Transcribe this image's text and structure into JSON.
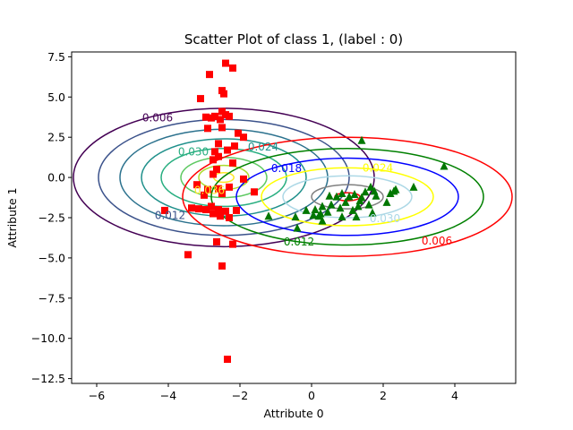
{
  "chart_data": {
    "type": "scatter",
    "title": "Scatter Plot of class 1, (label : 0)",
    "xlabel": "Attribute 0",
    "ylabel": "Attribute 1",
    "xlim": [
      -6.7,
      5.7
    ],
    "ylim": [
      -12.8,
      7.8
    ],
    "x_ticks": [
      -6,
      -4,
      -2,
      0,
      2,
      4
    ],
    "x_tick_labels": [
      "−6",
      "−4",
      "−2",
      "0",
      "2",
      "4"
    ],
    "y_ticks": [
      -12.5,
      -10.0,
      -7.5,
      -5.0,
      -2.5,
      0.0,
      2.5,
      5.0,
      7.5
    ],
    "y_tick_labels": [
      "−12.5",
      "−10.0",
      "−7.5",
      "−5.0",
      "−2.5",
      "0.0",
      "2.5",
      "5.0",
      "7.5"
    ],
    "grid": false,
    "series": [
      {
        "marker": "square",
        "color": "#ff0000",
        "points": [
          [
            -2.4,
            7.1
          ],
          [
            -2.2,
            6.8
          ],
          [
            -2.85,
            6.4
          ],
          [
            -2.5,
            5.4
          ],
          [
            -2.45,
            5.2
          ],
          [
            -3.1,
            4.9
          ],
          [
            -2.5,
            4.1
          ],
          [
            -2.4,
            3.9
          ],
          [
            -2.7,
            3.8
          ],
          [
            -2.95,
            3.75
          ],
          [
            -2.8,
            3.7
          ],
          [
            -2.55,
            3.6
          ],
          [
            -2.3,
            3.8
          ],
          [
            -2.5,
            3.1
          ],
          [
            -2.9,
            3.05
          ],
          [
            -2.05,
            2.75
          ],
          [
            -1.9,
            2.5
          ],
          [
            -2.6,
            2.1
          ],
          [
            -2.15,
            1.95
          ],
          [
            -2.35,
            1.7
          ],
          [
            -2.7,
            1.6
          ],
          [
            -2.75,
            1.1
          ],
          [
            -2.6,
            1.3
          ],
          [
            -2.2,
            0.9
          ],
          [
            -2.65,
            0.5
          ],
          [
            -2.75,
            0.2
          ],
          [
            -1.9,
            -0.1
          ],
          [
            -3.2,
            -0.45
          ],
          [
            -2.3,
            -0.6
          ],
          [
            -2.6,
            -0.7
          ],
          [
            -2.9,
            -0.75
          ],
          [
            -3.0,
            -1.1
          ],
          [
            -2.5,
            -1.0
          ],
          [
            -1.6,
            -0.9
          ],
          [
            -3.35,
            -1.9
          ],
          [
            -3.15,
            -1.95
          ],
          [
            -2.95,
            -2.0
          ],
          [
            -2.8,
            -1.8
          ],
          [
            -2.6,
            -2.0
          ],
          [
            -2.4,
            -2.1
          ],
          [
            -2.75,
            -2.25
          ],
          [
            -2.55,
            -2.4
          ],
          [
            -2.3,
            -2.5
          ],
          [
            -2.1,
            -2.05
          ],
          [
            -4.1,
            -2.05
          ],
          [
            -2.65,
            -4.0
          ],
          [
            -2.2,
            -4.15
          ],
          [
            -3.45,
            -4.8
          ],
          [
            -2.5,
            -5.5
          ],
          [
            -2.35,
            -11.3
          ]
        ]
      },
      {
        "marker": "triangle",
        "color": "#007700",
        "points": [
          [
            1.4,
            2.3
          ],
          [
            3.7,
            0.7
          ],
          [
            2.85,
            -0.6
          ],
          [
            2.35,
            -0.75
          ],
          [
            2.3,
            -0.85
          ],
          [
            1.65,
            -0.6
          ],
          [
            1.75,
            -0.85
          ],
          [
            1.8,
            -1.15
          ],
          [
            1.5,
            -0.9
          ],
          [
            1.2,
            -1.05
          ],
          [
            1.05,
            -1.2
          ],
          [
            0.85,
            -1.0
          ],
          [
            0.7,
            -1.2
          ],
          [
            0.95,
            -1.55
          ],
          [
            1.35,
            -1.45
          ],
          [
            1.6,
            -1.7
          ],
          [
            1.3,
            -1.8
          ],
          [
            1.15,
            -2.05
          ],
          [
            0.8,
            -1.9
          ],
          [
            0.55,
            -1.7
          ],
          [
            0.5,
            -1.15
          ],
          [
            0.45,
            -2.15
          ],
          [
            0.25,
            -2.25
          ],
          [
            0.85,
            -2.45
          ],
          [
            1.25,
            -2.45
          ],
          [
            0.3,
            -1.8
          ],
          [
            0.1,
            -2.0
          ],
          [
            0.05,
            -2.35
          ],
          [
            -0.15,
            -2.05
          ],
          [
            0.3,
            -2.7
          ],
          [
            0.2,
            -2.4
          ],
          [
            -0.45,
            -2.45
          ],
          [
            -0.4,
            -3.15
          ],
          [
            -1.2,
            -2.4
          ],
          [
            1.7,
            -2.2
          ],
          [
            2.1,
            -1.55
          ],
          [
            2.2,
            -1.0
          ],
          [
            1.4,
            -1.25
          ]
        ]
      }
    ],
    "contour_sets": [
      {
        "center": [
          -2.45,
          0.0
        ],
        "levels": [
          {
            "value": "0.006",
            "color": "#440154",
            "rx": 4.2,
            "ry": 4.3,
            "label": "0.006",
            "label_at": [
              -4.3,
              3.7
            ]
          },
          {
            "value": "0.012",
            "color": "#3b528b",
            "rx": 3.5,
            "ry": 3.6,
            "label": "0.012",
            "label_at": [
              -3.95,
              -2.35
            ]
          },
          {
            "value": "0.018",
            "color": "#2c728e",
            "rx": 2.9,
            "ry": 3.0,
            "label": "",
            "label_at": null
          },
          {
            "value": "0.024",
            "color": "#21918c",
            "rx": 2.3,
            "ry": 2.4,
            "label": "0.024",
            "label_at": [
              -1.35,
              1.9
            ]
          },
          {
            "value": "0.030",
            "color": "#28ae80",
            "rx": 1.75,
            "ry": 1.8,
            "label": "0.030",
            "label_at": [
              -3.3,
              1.6
            ]
          },
          {
            "value": "",
            "color": "#5ec962",
            "rx": 1.2,
            "ry": 1.25,
            "label": "",
            "label_at": null
          },
          {
            "value": "",
            "color": "#addc30",
            "rx": 0.7,
            "ry": 0.75,
            "label": "",
            "label_at": null
          },
          {
            "value": "0.036",
            "color": "#fde725",
            "rx": 0.28,
            "ry": 0.3,
            "label": "0.036",
            "label_at": [
              -2.85,
              -0.8
            ]
          }
        ]
      },
      {
        "center": [
          1.0,
          -1.2
        ],
        "levels": [
          {
            "value": "0.006",
            "color": "#ff0000",
            "rx": 4.6,
            "ry": 3.7,
            "label": "0.006",
            "label_at": [
              3.5,
              -3.95
            ]
          },
          {
            "value": "0.012",
            "color": "#008000",
            "rx": 3.8,
            "ry": 3.0,
            "label": "0.012",
            "label_at": [
              -0.35,
              -4.0
            ]
          },
          {
            "value": "0.018",
            "color": "#0000ff",
            "rx": 3.1,
            "ry": 2.4,
            "label": "0.018",
            "label_at": [
              -0.7,
              0.55
            ]
          },
          {
            "value": "0.024",
            "color": "#ffff00",
            "rx": 2.4,
            "ry": 1.8,
            "label": "0.024",
            "label_at": [
              1.85,
              0.6
            ]
          },
          {
            "value": "0.030",
            "color": "#add8e6",
            "rx": 1.8,
            "ry": 1.3,
            "label": "0.030",
            "label_at": [
              2.05,
              -2.55
            ]
          },
          {
            "value": "",
            "color": "#808080",
            "rx": 1.0,
            "ry": 0.75,
            "label": "",
            "label_at": null
          },
          {
            "value": "",
            "color": "#ff0000",
            "rx": 0.35,
            "ry": 0.25,
            "label": "",
            "label_at": null
          }
        ]
      }
    ]
  }
}
